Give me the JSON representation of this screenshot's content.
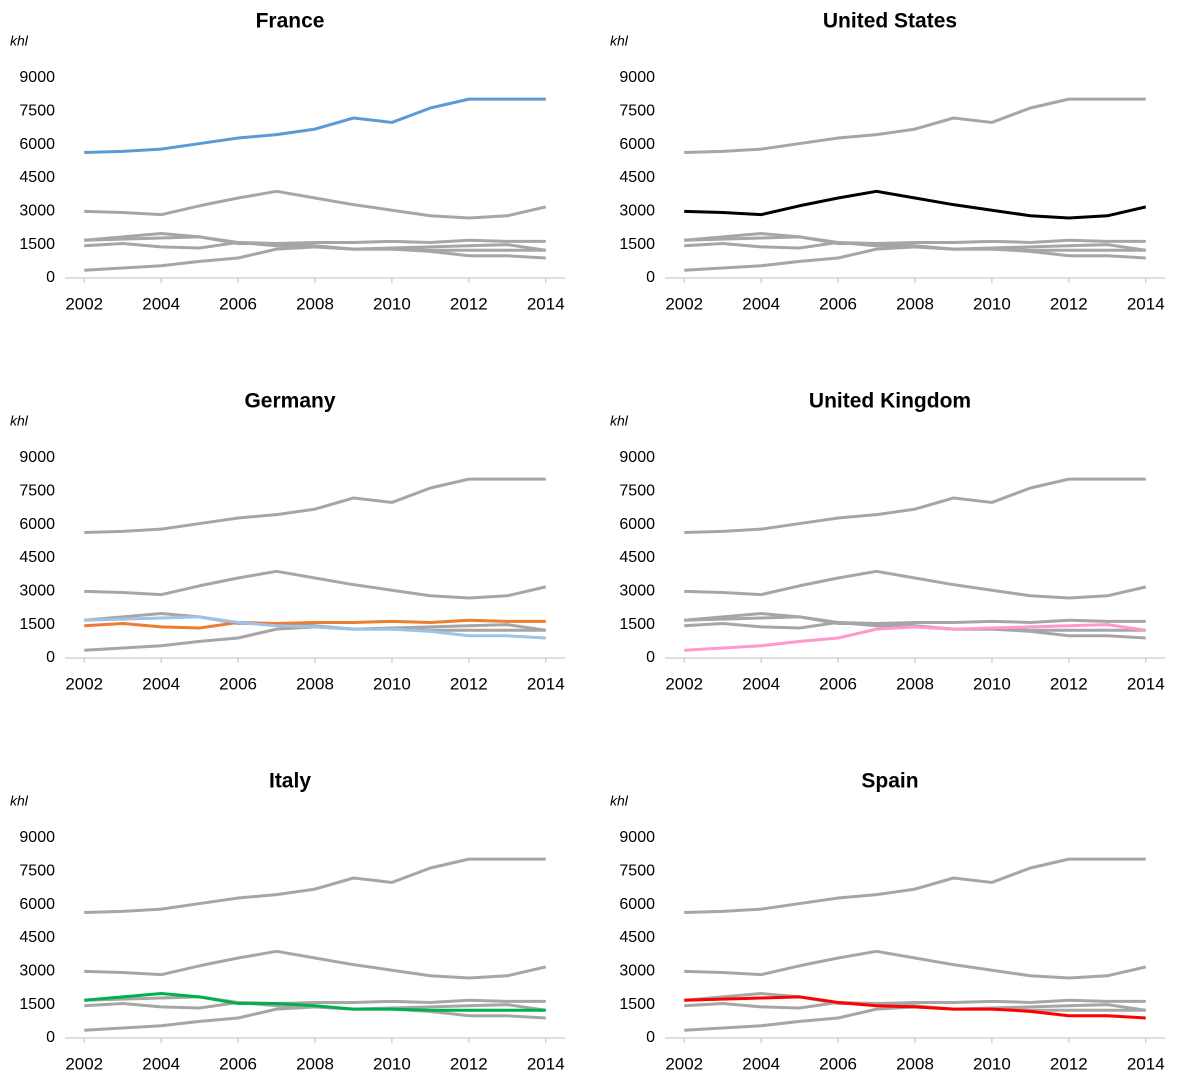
{
  "chart_data": [
    {
      "type": "line",
      "title": "France",
      "ylabel": "khl",
      "x": [
        2002,
        2003,
        2004,
        2005,
        2006,
        2007,
        2008,
        2009,
        2010,
        2011,
        2012,
        2013,
        2014
      ],
      "xlim": [
        2001.5,
        2014.5
      ],
      "xticks": [
        2002,
        2004,
        2006,
        2008,
        2010,
        2012,
        2014
      ],
      "ylim": [
        0,
        9000
      ],
      "yticks": [
        0,
        1500,
        3000,
        4500,
        6000,
        7500,
        9000
      ],
      "series": [
        {
          "color": "#5b9bd5",
          "values": [
            5650,
            5700,
            5800,
            6050,
            6300,
            6450,
            6700,
            7200,
            7000,
            7650,
            8050,
            8050,
            8050
          ]
        },
        {
          "color": "#a6a6a6",
          "values": [
            3000,
            2950,
            2850,
            3250,
            3600,
            3900,
            3600,
            3300,
            3050,
            2800,
            2700,
            2800,
            3200
          ]
        },
        {
          "color": "#a6a6a6",
          "values": [
            1450,
            1550,
            1400,
            1350,
            1600,
            1550,
            1600,
            1600,
            1650,
            1600,
            1700,
            1650,
            1650
          ]
        },
        {
          "color": "#a6a6a6",
          "values": [
            350,
            450,
            550,
            750,
            900,
            1300,
            1400,
            1300,
            1350,
            1400,
            1450,
            1500,
            1250
          ]
        },
        {
          "color": "#a6a6a6",
          "values": [
            1700,
            1850,
            2000,
            1850,
            1550,
            1550,
            1450,
            1300,
            1300,
            1250,
            1250,
            1250,
            1250
          ]
        },
        {
          "color": "#a6a6a6",
          "values": [
            1700,
            1750,
            1800,
            1850,
            1600,
            1450,
            1400,
            1300,
            1300,
            1200,
            1000,
            1000,
            900
          ]
        }
      ]
    },
    {
      "type": "line",
      "title": "United States",
      "ylabel": "khl",
      "x": [
        2002,
        2003,
        2004,
        2005,
        2006,
        2007,
        2008,
        2009,
        2010,
        2011,
        2012,
        2013,
        2014
      ],
      "xlim": [
        2001.5,
        2014.5
      ],
      "xticks": [
        2002,
        2004,
        2006,
        2008,
        2010,
        2012,
        2014
      ],
      "ylim": [
        0,
        9000
      ],
      "yticks": [
        0,
        1500,
        3000,
        4500,
        6000,
        7500,
        9000
      ],
      "series": [
        {
          "color": "#a6a6a6",
          "values": [
            5650,
            5700,
            5800,
            6050,
            6300,
            6450,
            6700,
            7200,
            7000,
            7650,
            8050,
            8050,
            8050
          ]
        },
        {
          "color": "#000000",
          "values": [
            3000,
            2950,
            2850,
            3250,
            3600,
            3900,
            3600,
            3300,
            3050,
            2800,
            2700,
            2800,
            3200
          ]
        },
        {
          "color": "#a6a6a6",
          "values": [
            1450,
            1550,
            1400,
            1350,
            1600,
            1550,
            1600,
            1600,
            1650,
            1600,
            1700,
            1650,
            1650
          ]
        },
        {
          "color": "#a6a6a6",
          "values": [
            350,
            450,
            550,
            750,
            900,
            1300,
            1400,
            1300,
            1350,
            1400,
            1450,
            1500,
            1250
          ]
        },
        {
          "color": "#a6a6a6",
          "values": [
            1700,
            1850,
            2000,
            1850,
            1550,
            1550,
            1450,
            1300,
            1300,
            1250,
            1250,
            1250,
            1250
          ]
        },
        {
          "color": "#a6a6a6",
          "values": [
            1700,
            1750,
            1800,
            1850,
            1600,
            1450,
            1400,
            1300,
            1300,
            1200,
            1000,
            1000,
            900
          ]
        }
      ]
    },
    {
      "type": "line",
      "title": "Germany",
      "ylabel": "khl",
      "x": [
        2002,
        2003,
        2004,
        2005,
        2006,
        2007,
        2008,
        2009,
        2010,
        2011,
        2012,
        2013,
        2014
      ],
      "xlim": [
        2001.5,
        2014.5
      ],
      "xticks": [
        2002,
        2004,
        2006,
        2008,
        2010,
        2012,
        2014
      ],
      "ylim": [
        0,
        9000
      ],
      "yticks": [
        0,
        1500,
        3000,
        4500,
        6000,
        7500,
        9000
      ],
      "series": [
        {
          "color": "#a6a6a6",
          "values": [
            5650,
            5700,
            5800,
            6050,
            6300,
            6450,
            6700,
            7200,
            7000,
            7650,
            8050,
            8050,
            8050
          ]
        },
        {
          "color": "#a6a6a6",
          "values": [
            3000,
            2950,
            2850,
            3250,
            3600,
            3900,
            3600,
            3300,
            3050,
            2800,
            2700,
            2800,
            3200
          ]
        },
        {
          "color": "#ed7d31",
          "values": [
            1450,
            1550,
            1400,
            1350,
            1600,
            1550,
            1600,
            1600,
            1650,
            1600,
            1700,
            1650,
            1650
          ]
        },
        {
          "color": "#a6a6a6",
          "values": [
            350,
            450,
            550,
            750,
            900,
            1300,
            1400,
            1300,
            1350,
            1400,
            1450,
            1500,
            1250
          ]
        },
        {
          "color": "#a6a6a6",
          "values": [
            1700,
            1850,
            2000,
            1850,
            1550,
            1550,
            1450,
            1300,
            1300,
            1250,
            1250,
            1250,
            1250
          ]
        },
        {
          "color": "#9dc3e6",
          "values": [
            1700,
            1750,
            1800,
            1850,
            1600,
            1450,
            1400,
            1300,
            1300,
            1200,
            1000,
            1000,
            900
          ]
        }
      ]
    },
    {
      "type": "line",
      "title": "United Kingdom",
      "ylabel": "khl",
      "x": [
        2002,
        2003,
        2004,
        2005,
        2006,
        2007,
        2008,
        2009,
        2010,
        2011,
        2012,
        2013,
        2014
      ],
      "xlim": [
        2001.5,
        2014.5
      ],
      "xticks": [
        2002,
        2004,
        2006,
        2008,
        2010,
        2012,
        2014
      ],
      "ylim": [
        0,
        9000
      ],
      "yticks": [
        0,
        1500,
        3000,
        4500,
        6000,
        7500,
        9000
      ],
      "series": [
        {
          "color": "#a6a6a6",
          "values": [
            5650,
            5700,
            5800,
            6050,
            6300,
            6450,
            6700,
            7200,
            7000,
            7650,
            8050,
            8050,
            8050
          ]
        },
        {
          "color": "#a6a6a6",
          "values": [
            3000,
            2950,
            2850,
            3250,
            3600,
            3900,
            3600,
            3300,
            3050,
            2800,
            2700,
            2800,
            3200
          ]
        },
        {
          "color": "#a6a6a6",
          "values": [
            1450,
            1550,
            1400,
            1350,
            1600,
            1550,
            1600,
            1600,
            1650,
            1600,
            1700,
            1650,
            1650
          ]
        },
        {
          "color": "#ff99cc",
          "values": [
            350,
            450,
            550,
            750,
            900,
            1300,
            1400,
            1300,
            1350,
            1400,
            1450,
            1500,
            1250
          ]
        },
        {
          "color": "#a6a6a6",
          "values": [
            1700,
            1850,
            2000,
            1850,
            1550,
            1550,
            1450,
            1300,
            1300,
            1250,
            1250,
            1250,
            1250
          ]
        },
        {
          "color": "#a6a6a6",
          "values": [
            1700,
            1750,
            1800,
            1850,
            1600,
            1450,
            1400,
            1300,
            1300,
            1200,
            1000,
            1000,
            900
          ]
        }
      ]
    },
    {
      "type": "line",
      "title": "Italy",
      "ylabel": "khl",
      "x": [
        2002,
        2003,
        2004,
        2005,
        2006,
        2007,
        2008,
        2009,
        2010,
        2011,
        2012,
        2013,
        2014
      ],
      "xlim": [
        2001.5,
        2014.5
      ],
      "xticks": [
        2002,
        2004,
        2006,
        2008,
        2010,
        2012,
        2014
      ],
      "ylim": [
        0,
        9000
      ],
      "yticks": [
        0,
        1500,
        3000,
        4500,
        6000,
        7500,
        9000
      ],
      "series": [
        {
          "color": "#a6a6a6",
          "values": [
            5650,
            5700,
            5800,
            6050,
            6300,
            6450,
            6700,
            7200,
            7000,
            7650,
            8050,
            8050,
            8050
          ]
        },
        {
          "color": "#a6a6a6",
          "values": [
            3000,
            2950,
            2850,
            3250,
            3600,
            3900,
            3600,
            3300,
            3050,
            2800,
            2700,
            2800,
            3200
          ]
        },
        {
          "color": "#a6a6a6",
          "values": [
            1450,
            1550,
            1400,
            1350,
            1600,
            1550,
            1600,
            1600,
            1650,
            1600,
            1700,
            1650,
            1650
          ]
        },
        {
          "color": "#a6a6a6",
          "values": [
            350,
            450,
            550,
            750,
            900,
            1300,
            1400,
            1300,
            1350,
            1400,
            1450,
            1500,
            1250
          ]
        },
        {
          "color": "#00b050",
          "values": [
            1700,
            1850,
            2000,
            1850,
            1550,
            1550,
            1450,
            1300,
            1300,
            1250,
            1250,
            1250,
            1250
          ]
        },
        {
          "color": "#a6a6a6",
          "values": [
            1700,
            1750,
            1800,
            1850,
            1600,
            1450,
            1400,
            1300,
            1300,
            1200,
            1000,
            1000,
            900
          ]
        }
      ]
    },
    {
      "type": "line",
      "title": "Spain",
      "ylabel": "khl",
      "x": [
        2002,
        2003,
        2004,
        2005,
        2006,
        2007,
        2008,
        2009,
        2010,
        2011,
        2012,
        2013,
        2014
      ],
      "xlim": [
        2001.5,
        2014.5
      ],
      "xticks": [
        2002,
        2004,
        2006,
        2008,
        2010,
        2012,
        2014
      ],
      "ylim": [
        0,
        9000
      ],
      "yticks": [
        0,
        1500,
        3000,
        4500,
        6000,
        7500,
        9000
      ],
      "series": [
        {
          "color": "#a6a6a6",
          "values": [
            5650,
            5700,
            5800,
            6050,
            6300,
            6450,
            6700,
            7200,
            7000,
            7650,
            8050,
            8050,
            8050
          ]
        },
        {
          "color": "#a6a6a6",
          "values": [
            3000,
            2950,
            2850,
            3250,
            3600,
            3900,
            3600,
            3300,
            3050,
            2800,
            2700,
            2800,
            3200
          ]
        },
        {
          "color": "#a6a6a6",
          "values": [
            1450,
            1550,
            1400,
            1350,
            1600,
            1550,
            1600,
            1600,
            1650,
            1600,
            1700,
            1650,
            1650
          ]
        },
        {
          "color": "#a6a6a6",
          "values": [
            350,
            450,
            550,
            750,
            900,
            1300,
            1400,
            1300,
            1350,
            1400,
            1450,
            1500,
            1250
          ]
        },
        {
          "color": "#a6a6a6",
          "values": [
            1700,
            1850,
            2000,
            1850,
            1550,
            1550,
            1450,
            1300,
            1300,
            1250,
            1250,
            1250,
            1250
          ]
        },
        {
          "color": "#ff0000",
          "values": [
            1700,
            1750,
            1800,
            1850,
            1600,
            1450,
            1400,
            1300,
            1300,
            1200,
            1000,
            1000,
            900
          ]
        }
      ]
    }
  ]
}
